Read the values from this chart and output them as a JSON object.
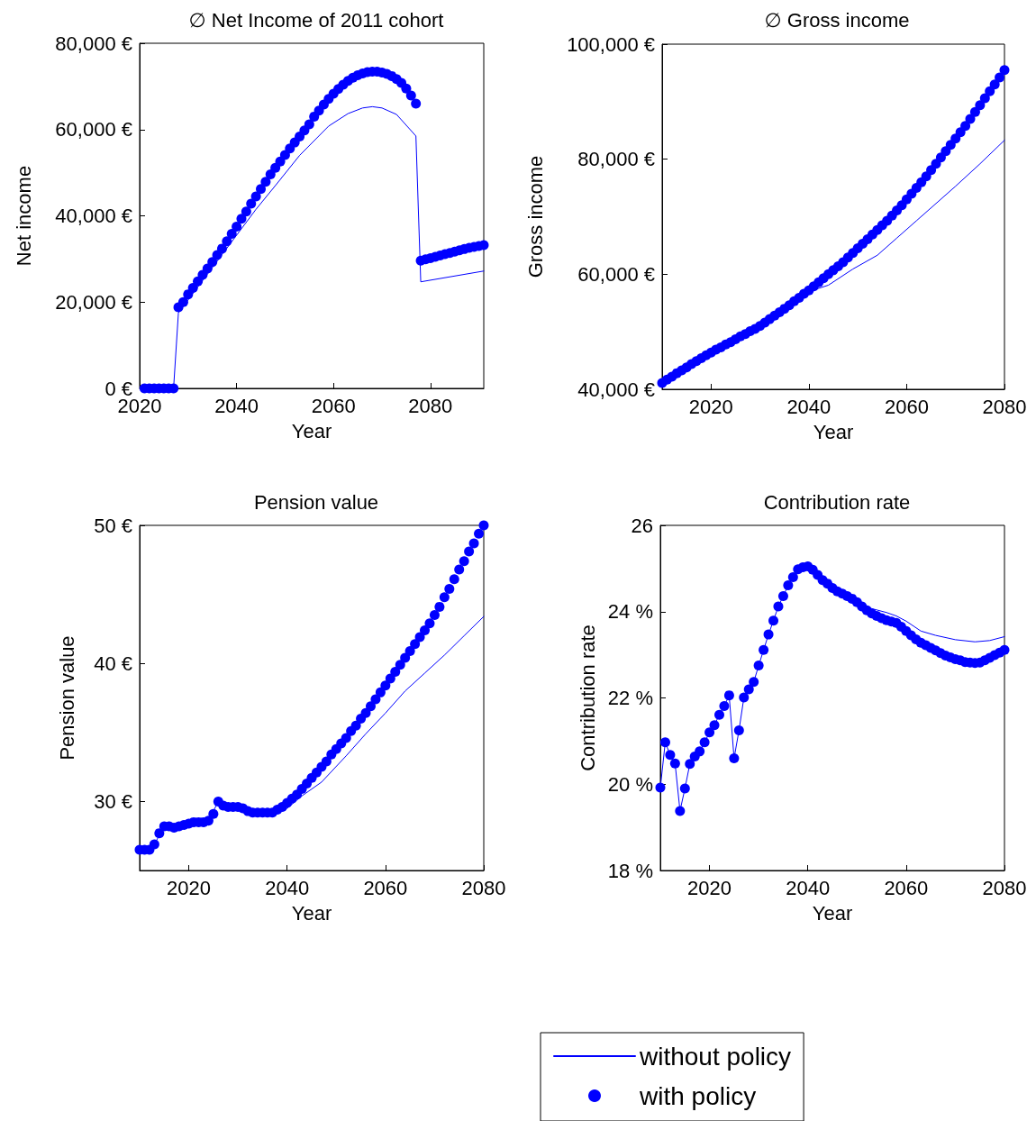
{
  "chart_data": [
    {
      "type": "line",
      "title": "∅ Net Income of 2011 cohort",
      "xlabel": "Year",
      "ylabel": "Net income",
      "xlim": [
        2020,
        2091
      ],
      "xticks": [
        2020,
        2040,
        2060,
        2080
      ],
      "ylim": [
        0,
        80000
      ],
      "yticks": [
        {
          "value": 0,
          "label": "0 €"
        },
        {
          "value": 20000,
          "label": "20,000 €"
        },
        {
          "value": 40000,
          "label": "40,000 €"
        },
        {
          "value": 60000,
          "label": "60,000 €"
        },
        {
          "value": 80000,
          "label": "80,000 €"
        }
      ],
      "grid": false,
      "legend": false,
      "series": [
        {
          "marker": "none",
          "color": "#0000ff",
          "x": [
            2021,
            2027,
            2028,
            2032,
            2037,
            2044,
            2048,
            2053,
            2059,
            2063,
            2066,
            2068,
            2070,
            2073,
            2077,
            2078,
            2091
          ],
          "values": [
            0,
            0,
            17500,
            23500,
            31000,
            41500,
            47000,
            54000,
            60800,
            63700,
            65000,
            65300,
            65000,
            63500,
            58500,
            24700,
            27200
          ]
        },
        {
          "type": "scatter",
          "marker": "circle",
          "color": "#0000ff",
          "x": [
            2021,
            2022,
            2023,
            2024,
            2025,
            2026,
            2027,
            2028,
            2029,
            2030,
            2031,
            2032,
            2033,
            2034,
            2035,
            2036,
            2037,
            2038,
            2039,
            2040,
            2041,
            2042,
            2043,
            2044,
            2045,
            2046,
            2047,
            2048,
            2049,
            2050,
            2051,
            2052,
            2053,
            2054,
            2055,
            2056,
            2057,
            2058,
            2059,
            2060,
            2061,
            2062,
            2063,
            2064,
            2065,
            2066,
            2067,
            2068,
            2069,
            2070,
            2071,
            2072,
            2073,
            2074,
            2075,
            2076,
            2077,
            2078,
            2079,
            2080,
            2081,
            2082,
            2083,
            2084,
            2085,
            2086,
            2087,
            2088,
            2089,
            2090,
            2091
          ],
          "values": [
            0,
            0,
            0,
            0,
            0,
            0,
            0,
            18800,
            20000,
            21800,
            23300,
            24800,
            26300,
            27800,
            29300,
            30900,
            32400,
            34100,
            35800,
            37500,
            39300,
            41000,
            42800,
            44500,
            46200,
            47900,
            49600,
            51100,
            52600,
            54100,
            55600,
            57000,
            58400,
            59800,
            61200,
            63000,
            64400,
            65800,
            67100,
            68300,
            69400,
            70400,
            71300,
            72000,
            72600,
            73000,
            73300,
            73400,
            73400,
            73200,
            72900,
            72400,
            71700,
            70800,
            69500,
            67900,
            66000,
            29600,
            29900,
            30200,
            30500,
            30800,
            31100,
            31400,
            31700,
            32000,
            32300,
            32600,
            32800,
            33000,
            33200
          ]
        }
      ]
    },
    {
      "type": "line",
      "title": "∅ Gross income",
      "xlabel": "Year",
      "ylabel": "Gross income",
      "xlim": [
        2010,
        2080
      ],
      "xticks": [
        2020,
        2040,
        2060,
        2080
      ],
      "ylim": [
        40000,
        100000
      ],
      "yticks": [
        {
          "value": 40000,
          "label": "40,000 €"
        },
        {
          "value": 60000,
          "label": "60,000 €"
        },
        {
          "value": 80000,
          "label": "80,000 €"
        },
        {
          "value": 100000,
          "label": "100,000 €"
        }
      ],
      "grid": false,
      "legend": false,
      "series": [
        {
          "marker": "none",
          "color": "#0000ff",
          "x": [
            2010,
            2020,
            2030,
            2040,
            2044,
            2049,
            2054,
            2058,
            2062,
            2066,
            2070,
            2075,
            2080
          ],
          "values": [
            41100,
            46400,
            51000,
            57000,
            58100,
            60900,
            63300,
            66300,
            69300,
            72300,
            75300,
            79200,
            83300
          ]
        },
        {
          "type": "scatter",
          "marker": "circle",
          "color": "#0000ff",
          "x": [
            2010,
            2011,
            2012,
            2013,
            2014,
            2015,
            2016,
            2017,
            2018,
            2019,
            2020,
            2021,
            2022,
            2023,
            2024,
            2025,
            2026,
            2027,
            2028,
            2029,
            2030,
            2031,
            2032,
            2033,
            2034,
            2035,
            2036,
            2037,
            2038,
            2039,
            2040,
            2041,
            2042,
            2043,
            2044,
            2045,
            2046,
            2047,
            2048,
            2049,
            2050,
            2051,
            2052,
            2053,
            2054,
            2055,
            2056,
            2057,
            2058,
            2059,
            2060,
            2061,
            2062,
            2063,
            2064,
            2065,
            2066,
            2067,
            2068,
            2069,
            2070,
            2071,
            2072,
            2073,
            2074,
            2075,
            2076,
            2077,
            2078,
            2079,
            2080
          ],
          "values": [
            41100,
            41700,
            42200,
            42800,
            43300,
            43800,
            44400,
            44900,
            45400,
            45900,
            46400,
            46900,
            47300,
            47800,
            48200,
            48700,
            49200,
            49600,
            50100,
            50500,
            51000,
            51600,
            52200,
            52800,
            53400,
            54000,
            54600,
            55300,
            55900,
            56600,
            57200,
            57900,
            58600,
            59300,
            60000,
            60700,
            61400,
            62100,
            62900,
            63700,
            64500,
            65300,
            66100,
            66900,
            67700,
            68500,
            69300,
            70200,
            71100,
            72000,
            73000,
            74000,
            75000,
            76000,
            77000,
            78100,
            79200,
            80300,
            81400,
            82500,
            83600,
            84700,
            85800,
            87000,
            88200,
            89400,
            90600,
            91800,
            93000,
            94200,
            95500
          ]
        }
      ]
    },
    {
      "type": "line",
      "title": "Pension value",
      "xlabel": "Year",
      "ylabel": "Pension value",
      "xlim": [
        2010,
        2080
      ],
      "xticks": [
        2020,
        2040,
        2060,
        2080
      ],
      "ylim": [
        25,
        50
      ],
      "yticks": [
        {
          "value": 30,
          "label": "30 €"
        },
        {
          "value": 40,
          "label": "40 €"
        },
        {
          "value": 50,
          "label": "50 €"
        }
      ],
      "grid": false,
      "legend": false,
      "series": [
        {
          "marker": "none",
          "color": "#0000ff",
          "x": [
            2010,
            2012,
            2013,
            2015,
            2017,
            2020,
            2024,
            2026,
            2028,
            2030,
            2033,
            2037,
            2040,
            2043,
            2047,
            2052,
            2056,
            2060,
            2064,
            2068,
            2072,
            2076,
            2080
          ],
          "values": [
            26.5,
            26.5,
            26.9,
            28.2,
            28.1,
            28.4,
            28.6,
            30.0,
            29.6,
            29.6,
            29.2,
            29.1,
            29.5,
            30.4,
            31.4,
            33.3,
            34.9,
            36.4,
            38.0,
            39.3,
            40.6,
            42.0,
            43.4
          ]
        },
        {
          "type": "scatter",
          "marker": "circle",
          "color": "#0000ff",
          "x": [
            2010,
            2011,
            2012,
            2013,
            2014,
            2015,
            2016,
            2017,
            2018,
            2019,
            2020,
            2021,
            2022,
            2023,
            2024,
            2025,
            2026,
            2027,
            2028,
            2029,
            2030,
            2031,
            2032,
            2033,
            2034,
            2035,
            2036,
            2037,
            2038,
            2039,
            2040,
            2041,
            2042,
            2043,
            2044,
            2045,
            2046,
            2047,
            2048,
            2049,
            2050,
            2051,
            2052,
            2053,
            2054,
            2055,
            2056,
            2057,
            2058,
            2059,
            2060,
            2061,
            2062,
            2063,
            2064,
            2065,
            2066,
            2067,
            2068,
            2069,
            2070,
            2071,
            2072,
            2073,
            2074,
            2075,
            2076,
            2077,
            2078,
            2079,
            2080
          ],
          "values": [
            26.5,
            26.5,
            26.5,
            26.9,
            27.7,
            28.2,
            28.2,
            28.1,
            28.2,
            28.3,
            28.4,
            28.5,
            28.5,
            28.5,
            28.6,
            29.1,
            30.0,
            29.7,
            29.6,
            29.6,
            29.6,
            29.5,
            29.3,
            29.2,
            29.2,
            29.2,
            29.2,
            29.2,
            29.4,
            29.6,
            29.9,
            30.2,
            30.5,
            30.9,
            31.3,
            31.7,
            32.1,
            32.5,
            32.9,
            33.4,
            33.8,
            34.2,
            34.6,
            35.1,
            35.5,
            36.0,
            36.4,
            36.9,
            37.4,
            37.9,
            38.4,
            38.9,
            39.4,
            39.9,
            40.4,
            40.9,
            41.4,
            41.9,
            42.4,
            42.9,
            43.5,
            44.1,
            44.8,
            45.4,
            46.1,
            46.8,
            47.4,
            48.1,
            48.7,
            49.4,
            50.0
          ]
        }
      ]
    },
    {
      "type": "line",
      "title": "Contribution rate",
      "xlabel": "Year",
      "ylabel": "Contribution rate",
      "xlim": [
        2010,
        2080
      ],
      "xticks": [
        2020,
        2040,
        2060,
        2080
      ],
      "ylim": [
        18,
        26
      ],
      "yticks": [
        {
          "value": 18,
          "label": "18 %"
        },
        {
          "value": 20,
          "label": "20 %"
        },
        {
          "value": 22,
          "label": "22 %"
        },
        {
          "value": 24,
          "label": "24 %"
        },
        26
      ],
      "grid": false,
      "legend": "bottom",
      "series": [
        {
          "name": "without policy",
          "marker": "none",
          "color": "#0000ff",
          "x": [
            2010,
            2011,
            2012,
            2013,
            2014,
            2015,
            2016,
            2017,
            2018,
            2019,
            2020,
            2021,
            2022,
            2023,
            2024,
            2025,
            2026,
            2027,
            2028,
            2029,
            2030,
            2031,
            2032,
            2033,
            2034,
            2035,
            2036,
            2037,
            2038,
            2039,
            2040,
            2041,
            2042,
            2043,
            2044,
            2045,
            2046,
            2047,
            2048,
            2049,
            2050,
            2053,
            2056,
            2058,
            2060,
            2063,
            2066,
            2070,
            2074,
            2077,
            2080
          ],
          "values": [
            19.92,
            20.97,
            20.68,
            20.48,
            19.38,
            19.9,
            20.47,
            20.64,
            20.76,
            20.97,
            21.2,
            21.37,
            21.61,
            21.81,
            22.06,
            20.6,
            21.25,
            22.01,
            22.2,
            22.37,
            22.75,
            23.11,
            23.47,
            23.79,
            24.12,
            24.36,
            24.61,
            24.8,
            24.98,
            25.03,
            25.05,
            24.97,
            24.85,
            24.73,
            24.65,
            24.55,
            24.47,
            24.42,
            24.36,
            24.3,
            24.22,
            24.07,
            23.98,
            23.9,
            23.78,
            23.55,
            23.45,
            23.35,
            23.3,
            23.33,
            23.42
          ]
        },
        {
          "name": "with policy",
          "type": "scatter",
          "marker": "circle",
          "color": "#0000ff",
          "x": [
            2010,
            2011,
            2012,
            2013,
            2014,
            2015,
            2016,
            2017,
            2018,
            2019,
            2020,
            2021,
            2022,
            2023,
            2024,
            2025,
            2026,
            2027,
            2028,
            2029,
            2030,
            2031,
            2032,
            2033,
            2034,
            2035,
            2036,
            2037,
            2038,
            2039,
            2040,
            2041,
            2042,
            2043,
            2044,
            2045,
            2046,
            2047,
            2048,
            2049,
            2050,
            2051,
            2052,
            2053,
            2054,
            2055,
            2056,
            2057,
            2058,
            2059,
            2060,
            2061,
            2062,
            2063,
            2064,
            2065,
            2066,
            2067,
            2068,
            2069,
            2070,
            2071,
            2072,
            2073,
            2074,
            2075,
            2076,
            2077,
            2078,
            2079,
            2080
          ],
          "values": [
            19.92,
            20.97,
            20.68,
            20.48,
            19.38,
            19.9,
            20.47,
            20.64,
            20.76,
            20.97,
            21.2,
            21.37,
            21.61,
            21.81,
            22.06,
            20.6,
            21.25,
            22.01,
            22.2,
            22.37,
            22.75,
            23.11,
            23.47,
            23.79,
            24.12,
            24.36,
            24.61,
            24.8,
            24.98,
            25.03,
            25.05,
            24.97,
            24.85,
            24.73,
            24.65,
            24.55,
            24.47,
            24.42,
            24.36,
            24.3,
            24.22,
            24.12,
            24.03,
            23.96,
            23.9,
            23.85,
            23.8,
            23.77,
            23.74,
            23.65,
            23.55,
            23.45,
            23.36,
            23.28,
            23.22,
            23.16,
            23.1,
            23.04,
            22.98,
            22.94,
            22.9,
            22.87,
            22.83,
            22.82,
            22.81,
            22.82,
            22.87,
            22.93,
            22.99,
            23.05,
            23.11
          ]
        }
      ]
    }
  ]
}
